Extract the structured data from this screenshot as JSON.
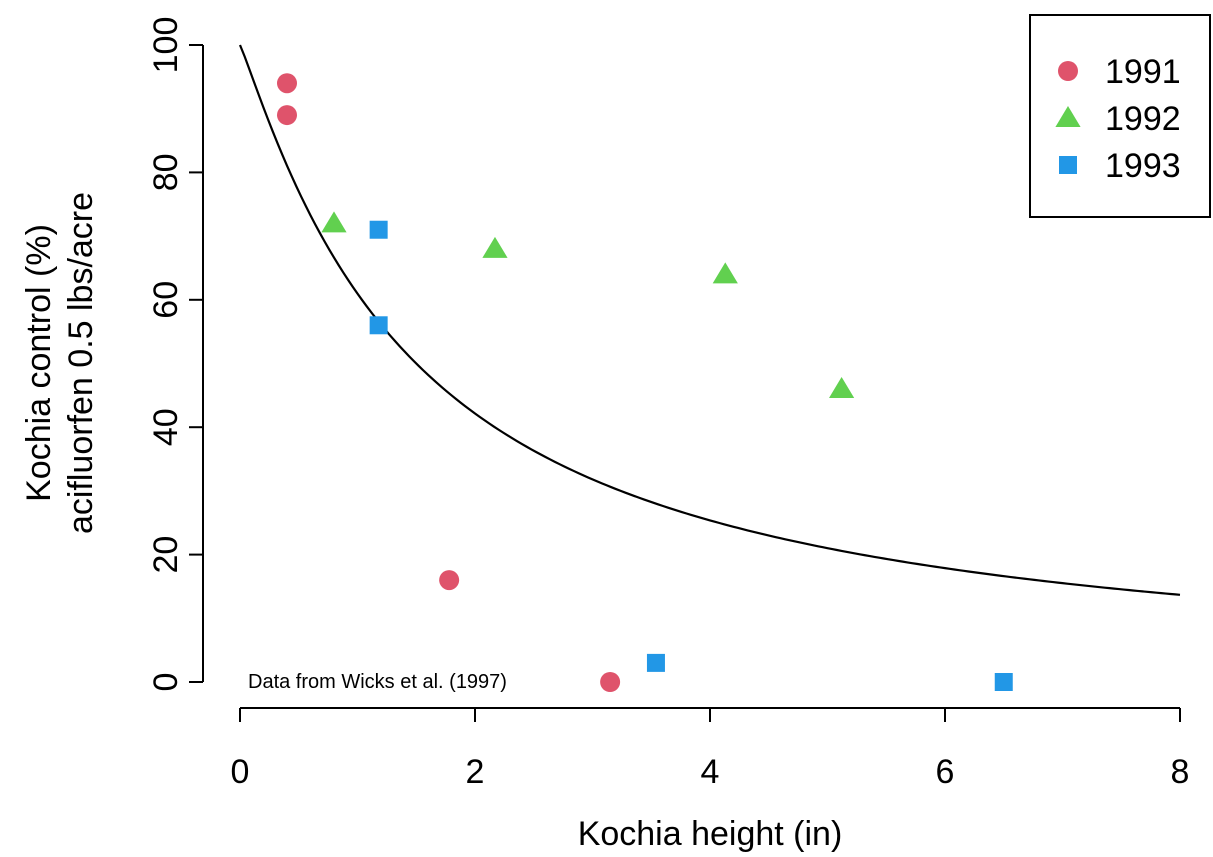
{
  "chart_data": {
    "type": "scatter",
    "xlabel": "Kochia height (in)",
    "ylabel_lines": [
      "Kochia control (%)",
      "acifluorfen 0.5 lbs/acre"
    ],
    "xlim": [
      0,
      8
    ],
    "ylim": [
      0,
      100
    ],
    "x_ticks": [
      "0",
      "2",
      "4",
      "6",
      "8"
    ],
    "y_ticks": [
      "0",
      "20",
      "40",
      "60",
      "80",
      "100"
    ],
    "annotation": "Data from Wicks et al. (1997)",
    "grid": false,
    "legend_position": "top-right",
    "series": [
      {
        "name": "1991",
        "marker": "circle",
        "color": "#DF536B",
        "points": [
          {
            "x": 0.4,
            "y": 94
          },
          {
            "x": 0.4,
            "y": 89
          },
          {
            "x": 1.78,
            "y": 16
          },
          {
            "x": 3.15,
            "y": 0
          }
        ]
      },
      {
        "name": "1992",
        "marker": "triangle",
        "color": "#61D04F",
        "points": [
          {
            "x": 0.8,
            "y": 72
          },
          {
            "x": 2.17,
            "y": 68
          },
          {
            "x": 4.13,
            "y": 64
          },
          {
            "x": 5.12,
            "y": 46
          }
        ]
      },
      {
        "name": "1993",
        "marker": "square",
        "color": "#2297E6",
        "points": [
          {
            "x": 1.18,
            "y": 71
          },
          {
            "x": 1.18,
            "y": 56
          },
          {
            "x": 3.54,
            "y": 3
          },
          {
            "x": 6.5,
            "y": 0
          }
        ]
      }
    ],
    "fit_curve": {
      "model": "log-logistic",
      "upper": 100,
      "ed50": 1.5,
      "slope": 1.1,
      "x_range": [
        0,
        8
      ]
    }
  }
}
